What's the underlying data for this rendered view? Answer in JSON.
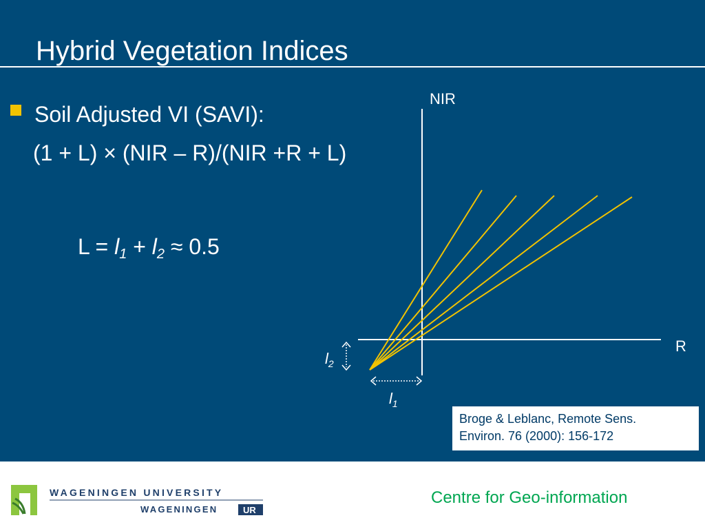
{
  "slide": {
    "title": "Hybrid Vegetation Indices",
    "bullet": "Soil Adjusted VI (SAVI):",
    "formula": "(1 + L) × (NIR – R)/(NIR +R + L)",
    "equation": {
      "lhs": "L =",
      "l1": "l",
      "l1_sub": "1",
      "plus": "+",
      "l2": "l",
      "l2_sub": "2",
      "rhs": "≈ 0.5"
    }
  },
  "diagram": {
    "y_axis_label": "NIR",
    "x_axis_label": "R",
    "l1_label": "l",
    "l1_sub": "1",
    "l2_label": "l",
    "l2_sub": "2",
    "line_count": 5,
    "line_color": "#f2c300",
    "axis_color": "#ffffff"
  },
  "citation": {
    "line1": "Broge & Leblanc, Remote Sens.",
    "line2": "Environ. 76 (2000): 156-172"
  },
  "footer": {
    "university": "WAGENINGEN UNIVERSITY",
    "sub_brand": "WAGENINGEN",
    "sub_brand_box": "UR",
    "centre": "Centre for Geo-information"
  },
  "colors": {
    "background": "#004a78",
    "bullet": "#f2c300",
    "footer_text": "#00a651",
    "logo_green": "#8cc63f"
  }
}
